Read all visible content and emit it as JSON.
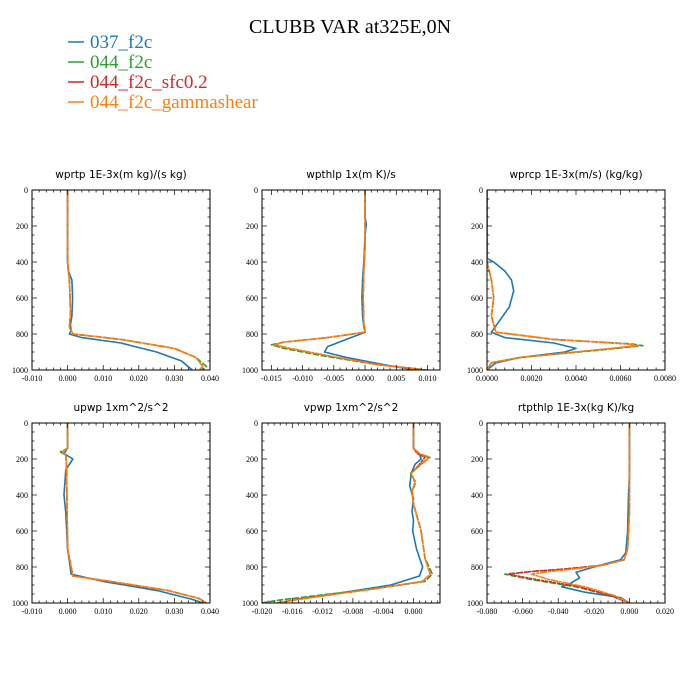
{
  "figure_title": "CLUBB VAR at325E,0N",
  "colors": {
    "037_f2c": "#1f77b4",
    "044_f2c": "#2ca02c",
    "044_f2c_sfc0.2": "#d62728",
    "044_f2c_gammashear": "#ff7f0e"
  },
  "legend": [
    {
      "name": "037_f2c",
      "color": "#1f77b4",
      "dash": "none"
    },
    {
      "name": "044_f2c",
      "color": "#2ca02c",
      "dash": "5,3"
    },
    {
      "name": "044_f2c_sfc0.2",
      "color": "#d62728",
      "dash": "2,2"
    },
    {
      "name": "044_f2c_gammashear",
      "color": "#ff7f0e",
      "dash": "6,2,2,2"
    }
  ],
  "chart_data": [
    {
      "type": "line",
      "title": "wprtp  1E-3x(m kg)/(s kg)",
      "xlim": [
        -0.01,
        0.04
      ],
      "ylim": [
        1000,
        0
      ],
      "xticks": [
        -0.01,
        0.0,
        0.01,
        0.02,
        0.03,
        0.04
      ],
      "xtick_labels": [
        "-0.010",
        "0.000",
        "0.010",
        "0.020",
        "0.030",
        "0.040"
      ],
      "yticks": [
        0,
        200,
        400,
        600,
        800,
        1000
      ],
      "ytick_labels": [
        "0",
        "200",
        "400",
        "600",
        "800",
        "1000"
      ],
      "series": [
        {
          "name": "037_f2c",
          "x": [
            0,
            0,
            0,
            0.0002,
            0.0012,
            0.0014,
            0.0012,
            0.0008,
            0.001,
            0.0005,
            0.004,
            0.015,
            0.025,
            0.032,
            0.035
          ],
          "y": [
            0,
            200,
            400,
            450,
            500,
            600,
            700,
            750,
            780,
            800,
            820,
            850,
            900,
            950,
            1000
          ]
        },
        {
          "name": "044_f2c",
          "x": [
            0,
            0,
            0,
            0.0005,
            0.0007,
            0.0008,
            0.0005,
            0.0015,
            0.015,
            0.03,
            0.036,
            0.039,
            0.038
          ],
          "y": [
            0,
            200,
            400,
            500,
            600,
            700,
            760,
            800,
            830,
            880,
            930,
            980,
            1000
          ]
        },
        {
          "name": "044_f2c_sfc0.2",
          "x": [
            0,
            0,
            0,
            0.0005,
            0.0007,
            0.0008,
            0.0005,
            0.0015,
            0.015,
            0.03,
            0.036,
            0.038,
            0.037
          ],
          "y": [
            0,
            200,
            400,
            500,
            600,
            700,
            760,
            800,
            830,
            880,
            930,
            980,
            1000
          ]
        },
        {
          "name": "044_f2c_gammashear",
          "x": [
            0,
            0,
            0,
            0.0005,
            0.0007,
            0.0008,
            0.0005,
            0.0015,
            0.015,
            0.03,
            0.036,
            0.038,
            0.037
          ],
          "y": [
            0,
            200,
            400,
            500,
            600,
            700,
            760,
            800,
            830,
            880,
            930,
            980,
            1000
          ]
        }
      ]
    },
    {
      "type": "line",
      "title": "wpthlp  1x(m K)/s",
      "xlim": [
        -0.0165,
        0.012
      ],
      "ylim": [
        1000,
        0
      ],
      "xticks": [
        -0.015,
        -0.01,
        -0.005,
        0.0,
        0.005,
        0.01
      ],
      "xtick_labels": [
        "-0.015",
        "-0.010",
        "-0.005",
        "0.000",
        "0.005",
        "0.010"
      ],
      "yticks": [
        0,
        200,
        400,
        600,
        800,
        1000
      ],
      "ytick_labels": [
        "0",
        "200",
        "400",
        "600",
        "800",
        "1000"
      ],
      "series": [
        {
          "name": "037_f2c",
          "x": [
            0,
            0,
            0.0002,
            0,
            -0.0002,
            -0.0004,
            -0.0005,
            -0.0004,
            -0.0002,
            0,
            -0.003,
            -0.006,
            -0.0065,
            -0.003,
            0.003,
            0.008
          ],
          "y": [
            0,
            150,
            190,
            250,
            400,
            500,
            600,
            700,
            760,
            790,
            830,
            870,
            900,
            930,
            970,
            1000
          ]
        },
        {
          "name": "044_f2c",
          "x": [
            0,
            0,
            0,
            -0.0002,
            -0.0003,
            -0.0002,
            0,
            -0.006,
            -0.013,
            -0.015,
            -0.013,
            -0.007,
            0.002,
            0.01
          ],
          "y": [
            0,
            150,
            300,
            450,
            600,
            740,
            790,
            820,
            845,
            860,
            880,
            920,
            970,
            1000
          ]
        },
        {
          "name": "044_f2c_sfc0.2",
          "x": [
            0,
            0,
            0,
            -0.0002,
            -0.0003,
            -0.0002,
            0,
            -0.006,
            -0.013,
            -0.0145,
            -0.012,
            -0.006,
            0.002,
            0.0095
          ],
          "y": [
            0,
            150,
            300,
            450,
            600,
            740,
            790,
            820,
            845,
            860,
            880,
            920,
            970,
            1000
          ]
        },
        {
          "name": "044_f2c_gammashear",
          "x": [
            0,
            0,
            0,
            -0.0002,
            -0.0003,
            -0.0002,
            0,
            -0.006,
            -0.013,
            -0.0145,
            -0.012,
            -0.006,
            0.002,
            0.0095
          ],
          "y": [
            0,
            150,
            300,
            450,
            600,
            740,
            790,
            820,
            845,
            860,
            880,
            920,
            970,
            1000
          ]
        }
      ]
    },
    {
      "type": "line",
      "title": "wprcp  1E-3x(m/s) (kg/kg)",
      "xlim": [
        0,
        0.008
      ],
      "ylim": [
        1000,
        0
      ],
      "xticks": [
        0,
        0.002,
        0.004,
        0.006,
        0.008
      ],
      "xtick_labels": [
        "0.0000",
        "0.0020",
        "0.0040",
        "0.0060",
        "0.0080"
      ],
      "yticks": [
        0,
        200,
        400,
        600,
        800,
        1000
      ],
      "ytick_labels": [
        "0",
        "200",
        "400",
        "600",
        "800",
        "1000"
      ],
      "series": [
        {
          "name": "037_f2c",
          "x": [
            0,
            0,
            0.0003,
            0.0008,
            0.0011,
            0.0012,
            0.001,
            0.0006,
            0.0002,
            0.0008,
            0.003,
            0.004,
            0.0035,
            0.0015,
            0.0004,
            0
          ],
          "y": [
            0,
            380,
            400,
            450,
            500,
            560,
            650,
            720,
            790,
            820,
            850,
            880,
            900,
            930,
            960,
            1000
          ]
        },
        {
          "name": "044_f2c",
          "x": [
            0,
            0,
            0.0002,
            0.0003,
            0.0002,
            0.0004,
            0.003,
            0.0065,
            0.007,
            0.005,
            0.0015,
            0.0002,
            0
          ],
          "y": [
            0,
            400,
            500,
            600,
            700,
            790,
            830,
            855,
            865,
            890,
            930,
            960,
            1000
          ]
        },
        {
          "name": "044_f2c_sfc0.2",
          "x": [
            0,
            0,
            0.0002,
            0.0003,
            0.0002,
            0.0004,
            0.003,
            0.0063,
            0.0068,
            0.0048,
            0.0015,
            0.0002,
            0
          ],
          "y": [
            0,
            400,
            500,
            600,
            700,
            790,
            830,
            855,
            865,
            890,
            930,
            960,
            1000
          ]
        },
        {
          "name": "044_f2c_gammashear",
          "x": [
            0,
            0,
            0.0002,
            0.0003,
            0.0002,
            0.0004,
            0.003,
            0.0063,
            0.0068,
            0.0048,
            0.0015,
            0.0002,
            0
          ],
          "y": [
            0,
            400,
            500,
            600,
            700,
            790,
            830,
            855,
            865,
            890,
            930,
            960,
            1000
          ]
        }
      ]
    },
    {
      "type": "line",
      "title": "upwp  1xm^2/s^2",
      "xlim": [
        -0.01,
        0.04
      ],
      "ylim": [
        1000,
        0
      ],
      "xticks": [
        -0.01,
        0.0,
        0.01,
        0.02,
        0.03,
        0.04
      ],
      "xtick_labels": [
        "-0.010",
        "0.000",
        "0.010",
        "0.020",
        "0.030",
        "0.040"
      ],
      "yticks": [
        0,
        200,
        400,
        600,
        800,
        1000
      ],
      "ytick_labels": [
        "0",
        "200",
        "400",
        "600",
        "800",
        "1000"
      ],
      "series": [
        {
          "name": "037_f2c",
          "x": [
            0,
            0,
            -0.001,
            0.0015,
            -0.0005,
            -0.001,
            -0.0005,
            0,
            0.001,
            0.01,
            0.025,
            0.035,
            0.038
          ],
          "y": [
            0,
            140,
            170,
            200,
            260,
            400,
            500,
            700,
            840,
            880,
            930,
            980,
            1000
          ]
        },
        {
          "name": "044_f2c",
          "x": [
            0,
            0,
            -0.002,
            -0.0005,
            -0.0003,
            -0.0002,
            0,
            0.0015,
            0.012,
            0.028,
            0.037,
            0.039
          ],
          "y": [
            0,
            140,
            160,
            180,
            250,
            400,
            700,
            850,
            880,
            930,
            975,
            1000
          ]
        },
        {
          "name": "044_f2c_sfc0.2",
          "x": [
            0,
            0,
            -0.0015,
            -0.0005,
            -0.0003,
            -0.0002,
            0,
            0.0015,
            0.012,
            0.028,
            0.037,
            0.039
          ],
          "y": [
            0,
            140,
            160,
            180,
            250,
            400,
            700,
            850,
            880,
            930,
            975,
            1000
          ]
        },
        {
          "name": "044_f2c_gammashear",
          "x": [
            0,
            0,
            -0.0015,
            -0.0005,
            -0.0003,
            -0.0002,
            0,
            0.0015,
            0.012,
            0.028,
            0.037,
            0.039
          ],
          "y": [
            0,
            140,
            160,
            180,
            250,
            400,
            700,
            850,
            880,
            930,
            975,
            1000
          ]
        }
      ]
    },
    {
      "type": "line",
      "title": "vpwp  1xm^2/s^2",
      "xlim": [
        -0.02,
        0.0035
      ],
      "ylim": [
        1000,
        0
      ],
      "xticks": [
        -0.02,
        -0.016,
        -0.012,
        -0.008,
        -0.004,
        0.0
      ],
      "xtick_labels": [
        "-0.020",
        "-0.016",
        "-0.012",
        "-0.008",
        "-0.004",
        "0.000"
      ],
      "yticks": [
        0,
        200,
        400,
        600,
        800,
        1000
      ],
      "ytick_labels": [
        "0",
        "200",
        "400",
        "600",
        "800",
        "1000"
      ],
      "series": [
        {
          "name": "037_f2c",
          "x": [
            0,
            0,
            0.0008,
            0.001,
            0.0002,
            -0.0003,
            -0.0005,
            0,
            -0.0002,
            0,
            -0.0001,
            0.0004,
            0.0012,
            0.0008,
            -0.003,
            -0.009,
            -0.014,
            -0.018
          ],
          "y": [
            0,
            140,
            170,
            200,
            230,
            280,
            350,
            420,
            490,
            540,
            600,
            700,
            800,
            850,
            900,
            940,
            970,
            1000
          ]
        },
        {
          "name": "044_f2c",
          "x": [
            0,
            0,
            0.0005,
            0.002,
            0.001,
            -0.0004,
            0.0003,
            -0.0002,
            0,
            0.001,
            0.0015,
            0.0025,
            0.0015,
            -0.005,
            -0.012,
            -0.018,
            -0.02
          ],
          "y": [
            0,
            140,
            170,
            190,
            230,
            280,
            330,
            380,
            450,
            600,
            750,
            840,
            880,
            920,
            955,
            985,
            1000
          ]
        },
        {
          "name": "044_f2c_sfc0.2",
          "x": [
            0,
            0,
            0.0005,
            0.0015,
            0.0008,
            -0.0003,
            0.0002,
            -0.0002,
            0,
            0.001,
            0.0015,
            0.0022,
            0.0012,
            -0.005,
            -0.011,
            -0.016,
            -0.018
          ],
          "y": [
            0,
            140,
            170,
            190,
            230,
            280,
            330,
            380,
            450,
            600,
            750,
            840,
            880,
            920,
            955,
            985,
            1000
          ]
        },
        {
          "name": "044_f2c_gammashear",
          "x": [
            0,
            0,
            0.0008,
            0.0022,
            0.001,
            -0.0003,
            0.0002,
            -0.0002,
            0,
            0.001,
            0.0015,
            0.0022,
            0.0012,
            -0.005,
            -0.011,
            -0.016,
            -0.018
          ],
          "y": [
            0,
            140,
            170,
            190,
            230,
            280,
            330,
            380,
            450,
            600,
            750,
            840,
            880,
            920,
            955,
            985,
            1000
          ]
        }
      ]
    },
    {
      "type": "line",
      "title": "rtpthlp  1E-3x(kg K)/kg",
      "xlim": [
        -0.08,
        0.02
      ],
      "ylim": [
        1000,
        0
      ],
      "xticks": [
        -0.08,
        -0.06,
        -0.04,
        -0.02,
        0.0,
        0.02
      ],
      "xtick_labels": [
        "-0.080",
        "-0.060",
        "-0.040",
        "-0.020",
        "0.000",
        "0.020"
      ],
      "yticks": [
        0,
        200,
        400,
        600,
        800,
        1000
      ],
      "ytick_labels": [
        "0",
        "200",
        "400",
        "600",
        "800",
        "1000"
      ],
      "series": [
        {
          "name": "037_f2c",
          "x": [
            0,
            0,
            -0.0005,
            -0.001,
            -0.002,
            -0.005,
            -0.02,
            -0.03,
            -0.028,
            -0.033,
            -0.038,
            -0.025,
            -0.005,
            0
          ],
          "y": [
            0,
            300,
            400,
            600,
            720,
            760,
            800,
            830,
            860,
            890,
            910,
            940,
            970,
            1000
          ]
        },
        {
          "name": "044_f2c",
          "x": [
            0,
            0,
            0,
            -0.001,
            -0.003,
            -0.015,
            -0.035,
            -0.055,
            -0.07,
            -0.055,
            -0.03,
            -0.01,
            0
          ],
          "y": [
            0,
            300,
            500,
            700,
            760,
            790,
            810,
            825,
            840,
            870,
            910,
            960,
            1000
          ]
        },
        {
          "name": "044_f2c_sfc0.2",
          "x": [
            0,
            0,
            0,
            -0.001,
            -0.003,
            -0.015,
            -0.035,
            -0.055,
            -0.068,
            -0.052,
            -0.028,
            -0.01,
            0
          ],
          "y": [
            0,
            300,
            500,
            700,
            760,
            790,
            810,
            825,
            840,
            870,
            910,
            960,
            1000
          ]
        },
        {
          "name": "044_f2c_gammashear",
          "x": [
            0,
            0,
            0,
            -0.001,
            -0.003,
            -0.015,
            -0.03,
            -0.045,
            -0.055,
            -0.045,
            -0.025,
            -0.008,
            0
          ],
          "y": [
            0,
            300,
            500,
            700,
            760,
            790,
            810,
            825,
            840,
            870,
            910,
            960,
            1000
          ]
        }
      ]
    }
  ]
}
